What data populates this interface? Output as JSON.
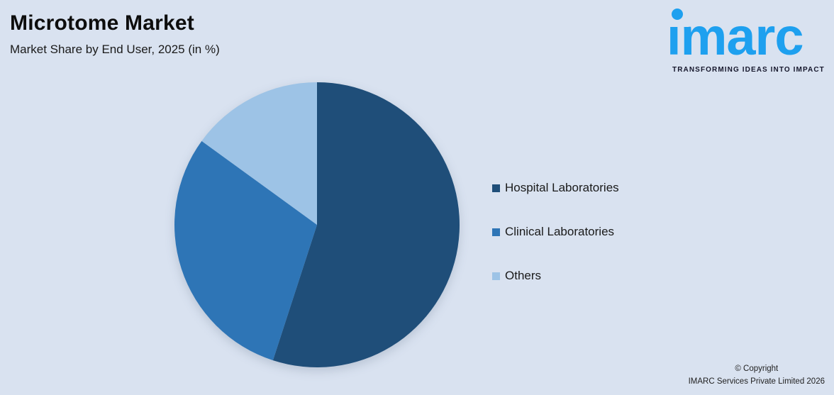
{
  "header": {
    "title": "Microtome Market",
    "subtitle": "Market Share by End User, 2025 (in %)"
  },
  "logo": {
    "text": "marc",
    "name": "imarc",
    "tagline": "TRANSFORMING IDEAS INTO IMPACT",
    "brand_color": "#1EA0EF",
    "tagline_color": "#15162B"
  },
  "footer": {
    "line1": "© Copyright",
    "line2": "IMARC Services Private Limited 2026"
  },
  "colors": {
    "background": "#D9E2F0",
    "title_text": "#0D0D0D",
    "body_text": "#1A1A1A"
  },
  "chart_data": {
    "type": "pie",
    "title": "Microtome Market",
    "subtitle": "Market Share by End User, 2025 (in %)",
    "year": "2025",
    "unit": "%",
    "categories": [
      "Hospital Laboratories",
      "Clinical Laboratories",
      "Others"
    ],
    "values": [
      55,
      30,
      15
    ],
    "colors": [
      "#1F4E79",
      "#2E75B6",
      "#9DC3E6"
    ],
    "start_angle_deg": 0,
    "direction": "clockwise",
    "legend_position": "right",
    "data_labels": false
  }
}
